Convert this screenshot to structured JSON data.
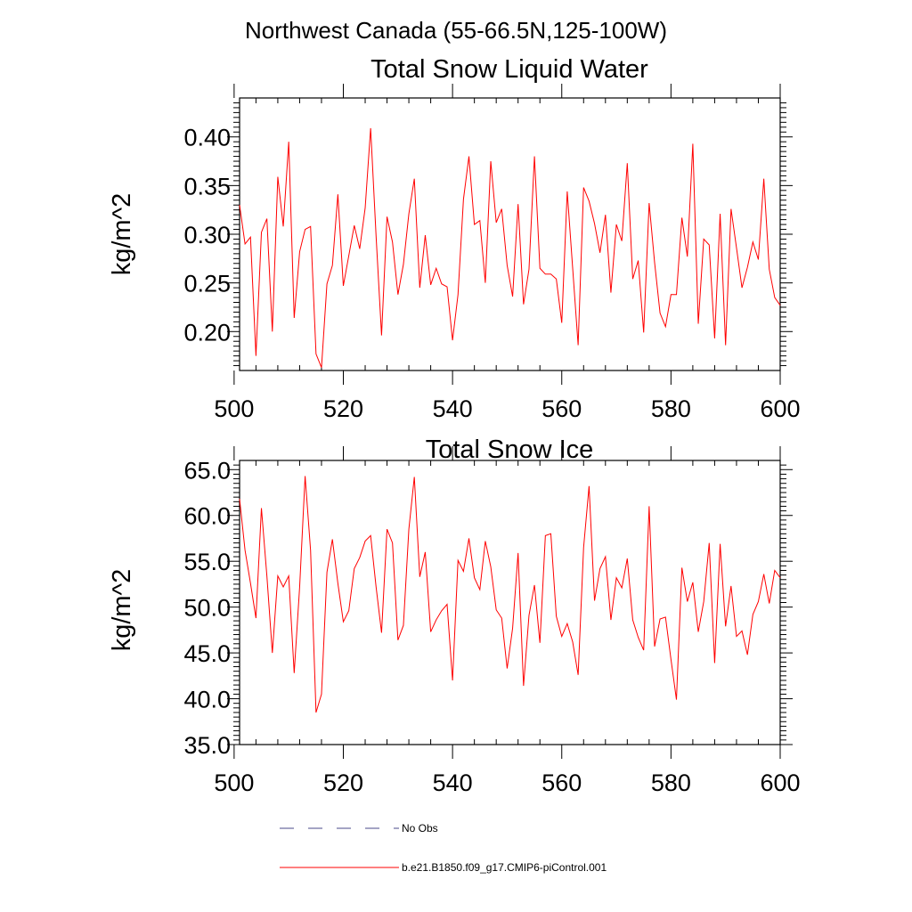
{
  "figure_title": "Northwest Canada (55-66.5N,125-100W)",
  "legend": {
    "items": [
      {
        "label": "No Obs",
        "style": "dashed",
        "color": "#4a4a8a"
      },
      {
        "label": "b.e21.B1850.f09_g17.CMIP6-piControl.001",
        "style": "solid",
        "color": "#ff0000"
      }
    ]
  },
  "chart_data": [
    {
      "type": "line",
      "title": "Total Snow Liquid Water",
      "xlabel": "",
      "ylabel": "kg/m^2",
      "xlim": [
        501,
        600
      ],
      "ylim": [
        0.16,
        0.44
      ],
      "x_ticks": [
        500,
        520,
        540,
        560,
        580,
        600
      ],
      "y_ticks": [
        0.2,
        0.25,
        0.3,
        0.35,
        0.4
      ],
      "y_tick_labels": [
        "0.20",
        "0.25",
        "0.30",
        "0.35",
        "0.40"
      ],
      "grid": false,
      "series": [
        {
          "name": "b.e21.B1850.f09_g17.CMIP6-piControl.001",
          "color": "#ff0000",
          "x_start": 501,
          "values": [
            0.33,
            0.29,
            0.297,
            0.175,
            0.302,
            0.316,
            0.2,
            0.359,
            0.308,
            0.395,
            0.214,
            0.282,
            0.305,
            0.308,
            0.177,
            0.163,
            0.249,
            0.268,
            0.341,
            0.247,
            0.278,
            0.309,
            0.285,
            0.327,
            0.409,
            0.298,
            0.196,
            0.318,
            0.292,
            0.238,
            0.269,
            0.321,
            0.357,
            0.245,
            0.299,
            0.248,
            0.265,
            0.249,
            0.246,
            0.191,
            0.238,
            0.336,
            0.38,
            0.31,
            0.314,
            0.25,
            0.375,
            0.312,
            0.326,
            0.268,
            0.236,
            0.331,
            0.228,
            0.264,
            0.38,
            0.265,
            0.259,
            0.259,
            0.254,
            0.209,
            0.344,
            0.265,
            0.186,
            0.348,
            0.334,
            0.311,
            0.281,
            0.32,
            0.24,
            0.31,
            0.293,
            0.373,
            0.254,
            0.273,
            0.199,
            0.332,
            0.271,
            0.219,
            0.205,
            0.238,
            0.238,
            0.317,
            0.277,
            0.393,
            0.208,
            0.295,
            0.289,
            0.193,
            0.321,
            0.186,
            0.326,
            0.286,
            0.245,
            0.266,
            0.292,
            0.274,
            0.357,
            0.264,
            0.235,
            0.227
          ]
        }
      ]
    },
    {
      "type": "line",
      "title": "Total Snow Ice",
      "xlabel": "",
      "ylabel": "kg/m^2",
      "xlim": [
        501,
        600
      ],
      "ylim": [
        35.0,
        66.0
      ],
      "x_ticks": [
        500,
        520,
        540,
        560,
        580,
        600
      ],
      "y_ticks": [
        35.0,
        40.0,
        45.0,
        50.0,
        55.0,
        60.0,
        65.0
      ],
      "y_tick_labels": [
        "35.0",
        "40.0",
        "45.0",
        "50.0",
        "55.0",
        "60.0",
        "65.0"
      ],
      "grid": false,
      "series": [
        {
          "name": "b.e21.B1850.f09_g17.CMIP6-piControl.001",
          "color": "#ff0000",
          "x_start": 501,
          "values": [
            61.8,
            56.2,
            52.6,
            48.8,
            60.8,
            53.4,
            45.0,
            53.4,
            52.2,
            53.4,
            42.8,
            52.2,
            64.3,
            56.2,
            38.5,
            40.5,
            53.8,
            57.4,
            52.6,
            48.4,
            49.6,
            54.2,
            55.4,
            57.2,
            57.8,
            52.2,
            47.2,
            58.5,
            57.0,
            46.4,
            48.0,
            58.5,
            64.2,
            53.3,
            56.0,
            47.3,
            48.6,
            49.6,
            50.3,
            42.0,
            55.1,
            53.9,
            57.5,
            53.2,
            51.9,
            57.2,
            54.4,
            49.7,
            48.8,
            43.3,
            47.7,
            55.9,
            41.4,
            49.1,
            52.4,
            46.1,
            57.8,
            58.0,
            49.0,
            46.8,
            48.2,
            46.2,
            42.6,
            56.5,
            63.2,
            50.7,
            54.2,
            55.5,
            48.6,
            53.2,
            52.1,
            55.3,
            48.6,
            46.7,
            45.3,
            61.0,
            45.7,
            48.7,
            48.9,
            44.3,
            39.9,
            54.3,
            50.6,
            52.7,
            47.3,
            50.6,
            57.0,
            43.9,
            56.9,
            47.9,
            52.3,
            46.8,
            47.4,
            44.8,
            49.2,
            50.6,
            53.6,
            50.4,
            54.0,
            53.2
          ]
        }
      ]
    }
  ]
}
